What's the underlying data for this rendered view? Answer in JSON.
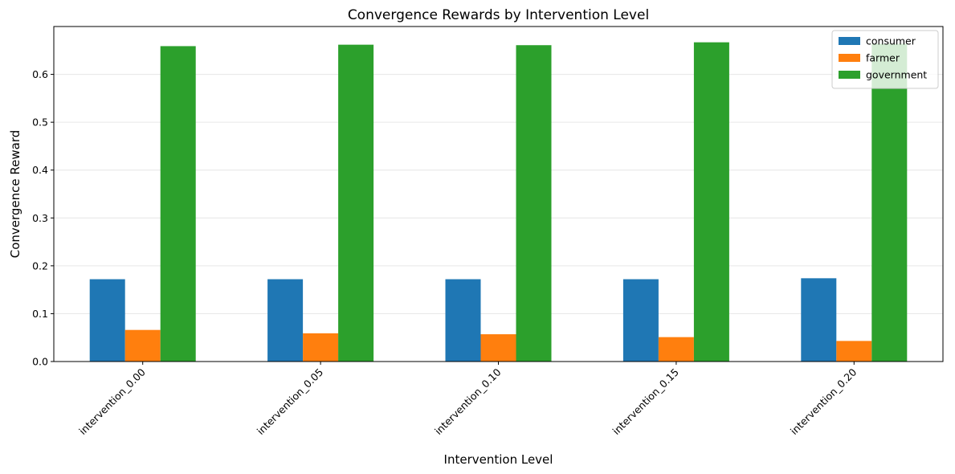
{
  "chart_data": {
    "type": "bar",
    "title": "Convergence Rewards by Intervention Level",
    "xlabel": "Intervention Level",
    "ylabel": "Convergence Reward",
    "categories": [
      "intervention_0.00",
      "intervention_0.05",
      "intervention_0.10",
      "intervention_0.15",
      "intervention_0.20"
    ],
    "series": [
      {
        "name": "consumer",
        "color": "#1f77b4",
        "values": [
          0.172,
          0.172,
          0.172,
          0.172,
          0.174
        ]
      },
      {
        "name": "farmer",
        "color": "#ff7f0e",
        "values": [
          0.066,
          0.059,
          0.057,
          0.051,
          0.043
        ]
      },
      {
        "name": "government",
        "color": "#2ca02c",
        "values": [
          0.659,
          0.662,
          0.661,
          0.667,
          0.664
        ]
      }
    ],
    "ylim": [
      0,
      0.7
    ],
    "yticks": [
      "0.0",
      "0.1",
      "0.2",
      "0.3",
      "0.4",
      "0.5",
      "0.6"
    ],
    "grid": "horizontal",
    "legend_position": "top-right",
    "xtick_rotation": 45
  }
}
